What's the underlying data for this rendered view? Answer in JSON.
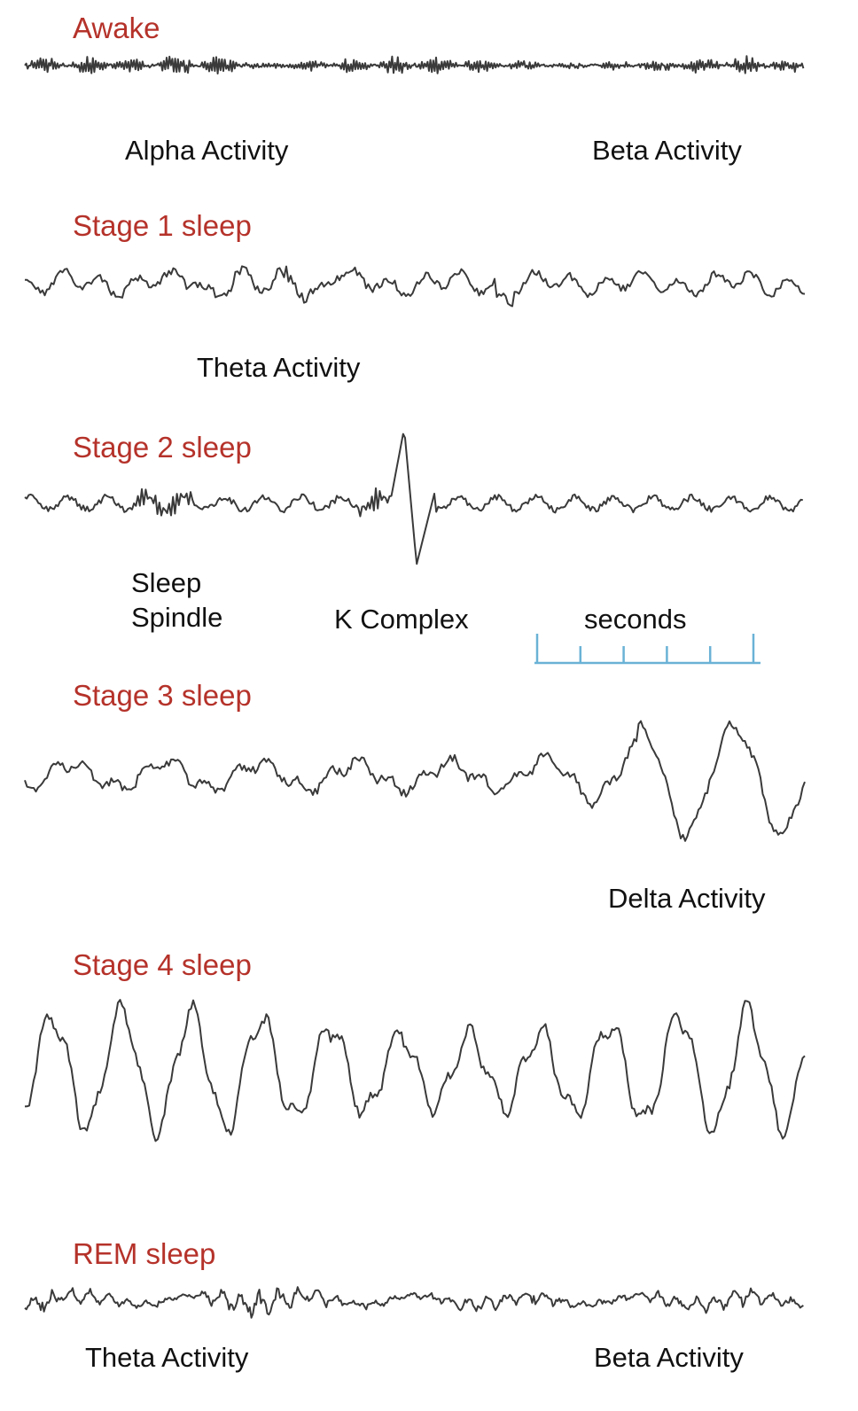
{
  "stages": [
    {
      "id": "awake",
      "title": "Awake",
      "color": "#b5322a"
    },
    {
      "id": "stage1",
      "title": "Stage 1 sleep",
      "color": "#b5322a"
    },
    {
      "id": "stage2",
      "title": "Stage 2 sleep",
      "color": "#b5322a"
    },
    {
      "id": "stage3",
      "title": "Stage 3 sleep",
      "color": "#b5322a"
    },
    {
      "id": "stage4",
      "title": "Stage 4 sleep",
      "color": "#b5322a"
    },
    {
      "id": "rem",
      "title": "REM sleep",
      "color": "#b5322a"
    }
  ],
  "captions": {
    "awake_alpha": "Alpha Activity",
    "awake_beta": "Beta Activity",
    "stage1_theta": "Theta Activity",
    "stage2_spindle_line1": "Sleep",
    "stage2_spindle_line2": "Spindle",
    "stage2_k_complex": "K Complex",
    "seconds": "seconds",
    "stage3_delta": "Delta Activity",
    "rem_theta": "Theta Activity",
    "rem_beta": "Beta Activity"
  },
  "scale_bar": {
    "ticks": 6,
    "color": "#6ab2d6"
  },
  "wave_color": "#3a3a3a"
}
